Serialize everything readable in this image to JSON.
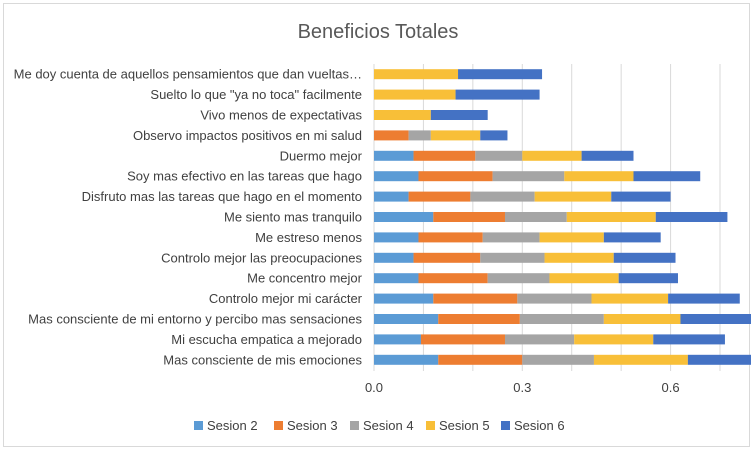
{
  "chart_data": {
    "type": "bar",
    "orientation": "horizontal",
    "stacked": true,
    "title": "Beneficios Totales",
    "xlabel": "",
    "ylabel": "",
    "xlim": [
      0,
      0.7
    ],
    "x_ticks": [
      0.0,
      0.3,
      0.6
    ],
    "x_tick_labels": [
      "0.0",
      "0.3",
      "0.6"
    ],
    "grid": "vertical",
    "legend_position": "bottom",
    "categories": [
      "Me doy cuenta de aquellos pensamientos que dan vueltas…",
      "Suelto lo que \"ya no toca\" facilmente",
      "Vivo menos de expectativas",
      "Observo impactos positivos en mi salud",
      "Duermo mejor",
      "Soy mas efectivo en las tareas que hago",
      "Disfruto mas las tareas que hago en el momento",
      "Me siento mas tranquilo",
      "Me estreso menos",
      "Controlo mejor las preocupaciones",
      "Me concentro mejor",
      "Controlo mejor mi carácter",
      "Mas consciente de mi entorno y percibo mas sensaciones",
      "Mi escucha empatica a mejorado",
      "Mas consciente de mis emociones"
    ],
    "series": [
      {
        "name": "Sesion 2",
        "color": "#5b9bd5",
        "values": [
          0,
          0,
          0,
          0,
          0.08,
          0.09,
          0.07,
          0.12,
          0.09,
          0.08,
          0.09,
          0.12,
          0.13,
          0.095,
          0.13
        ]
      },
      {
        "name": "Sesion 3",
        "color": "#ed7d31",
        "values": [
          0,
          0,
          0,
          0.07,
          0.125,
          0.15,
          0.125,
          0.145,
          0.13,
          0.135,
          0.14,
          0.17,
          0.165,
          0.17,
          0.17
        ]
      },
      {
        "name": "Sesion 4",
        "color": "#a5a5a5",
        "values": [
          0,
          0,
          0,
          0.045,
          0.095,
          0.145,
          0.13,
          0.125,
          0.115,
          0.13,
          0.125,
          0.15,
          0.17,
          0.14,
          0.145
        ]
      },
      {
        "name": "Sesion 5",
        "color": "#f8bf38",
        "values": [
          0.17,
          0.165,
          0.115,
          0.1,
          0.12,
          0.14,
          0.155,
          0.18,
          0.13,
          0.14,
          0.14,
          0.155,
          0.155,
          0.16,
          0.19
        ]
      },
      {
        "name": "Sesion 6",
        "color": "#4472c4",
        "values": [
          0.17,
          0.17,
          0.115,
          0.055,
          0.105,
          0.135,
          0.12,
          0.145,
          0.115,
          0.125,
          0.12,
          0.145,
          0.155,
          0.145,
          0.16
        ]
      }
    ]
  }
}
